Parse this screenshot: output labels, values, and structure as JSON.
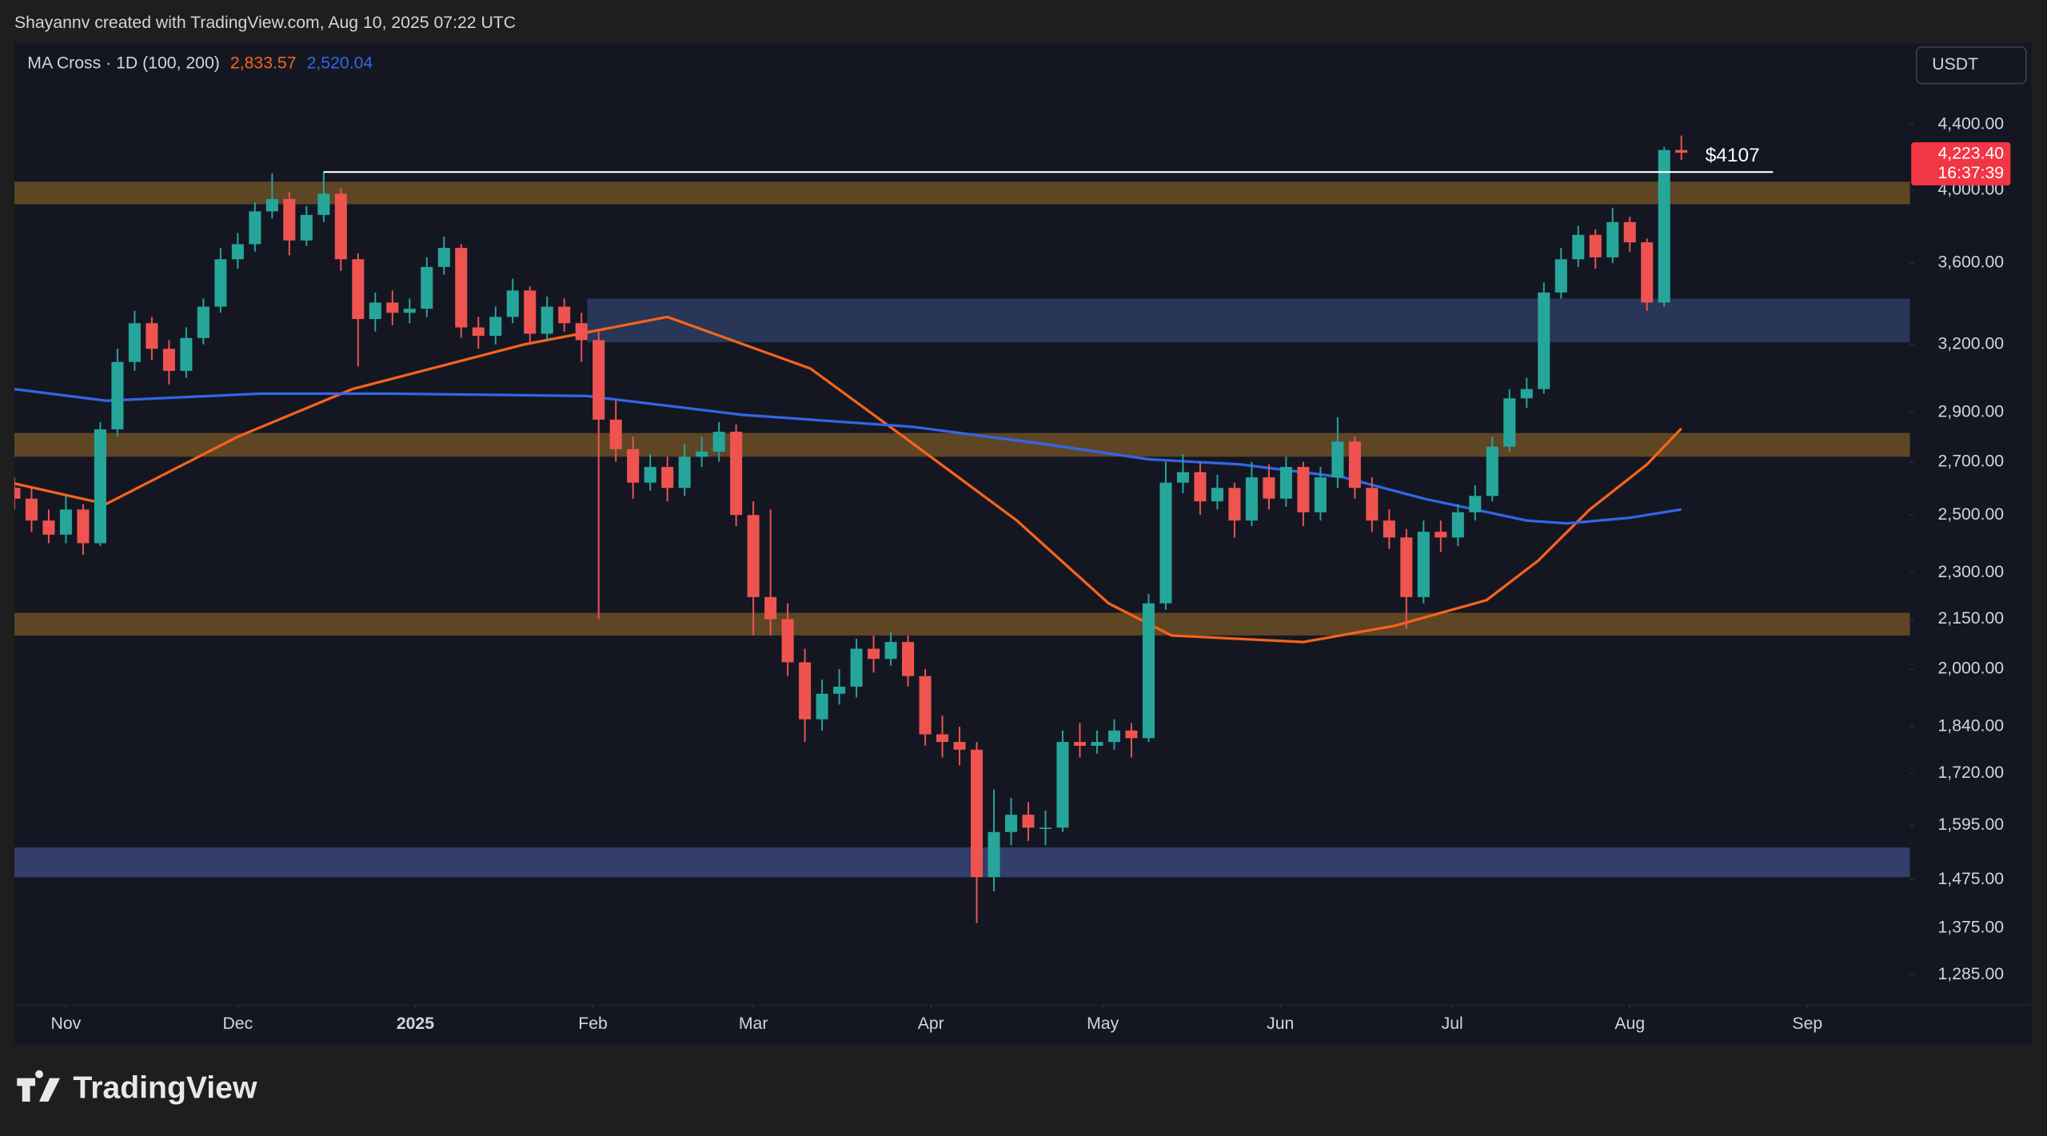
{
  "header": {
    "credit": "Shayannv created with TradingView.com, Aug 10, 2025 07:22 UTC"
  },
  "toolbar": {
    "currency": "USDT"
  },
  "footer": {
    "brand": "TradingView"
  },
  "chart_data": {
    "type": "candlestick",
    "indicator": "MA Cross · 1D (100, 200)",
    "log_scale": true,
    "up_color": "#26a69a",
    "down_color": "#ef5350",
    "x": [
      -9,
      -6,
      -3,
      0,
      3,
      6,
      9,
      12,
      15,
      18,
      21,
      24,
      27,
      30,
      33,
      36,
      39,
      42,
      45,
      48,
      51,
      54,
      57,
      60,
      63,
      66,
      69,
      72,
      75,
      78,
      81,
      84,
      87,
      90,
      93,
      96,
      99,
      102,
      105,
      108,
      111,
      114,
      117,
      120,
      123,
      126,
      129,
      132,
      135,
      138,
      141,
      144,
      147,
      150,
      153,
      156,
      159,
      162,
      165,
      168,
      171,
      174,
      177,
      180,
      183,
      186,
      189,
      192,
      195,
      198,
      201,
      204,
      207,
      210,
      213,
      216,
      219,
      222,
      225,
      228,
      231,
      234,
      237,
      240,
      243,
      246,
      249,
      252,
      255,
      258,
      261,
      264,
      267,
      270,
      273,
      276,
      279,
      282
    ],
    "values": [
      [
        2600,
        2640,
        2520,
        2560
      ],
      [
        2560,
        2600,
        2440,
        2480
      ],
      [
        2480,
        2520,
        2400,
        2430
      ],
      [
        2430,
        2570,
        2400,
        2520
      ],
      [
        2520,
        2540,
        2360,
        2400
      ],
      [
        2400,
        2860,
        2390,
        2830
      ],
      [
        2830,
        3180,
        2800,
        3120
      ],
      [
        3120,
        3360,
        3080,
        3300
      ],
      [
        3300,
        3330,
        3130,
        3180
      ],
      [
        3180,
        3220,
        3020,
        3080
      ],
      [
        3080,
        3280,
        3050,
        3230
      ],
      [
        3230,
        3420,
        3200,
        3380
      ],
      [
        3380,
        3680,
        3350,
        3620
      ],
      [
        3620,
        3760,
        3570,
        3700
      ],
      [
        3700,
        3930,
        3660,
        3880
      ],
      [
        3880,
        4100,
        3840,
        3950
      ],
      [
        3950,
        3990,
        3640,
        3720
      ],
      [
        3720,
        3910,
        3690,
        3860
      ],
      [
        3860,
        4110,
        3820,
        3980
      ],
      [
        3980,
        4010,
        3560,
        3620
      ],
      [
        3620,
        3650,
        3100,
        3320
      ],
      [
        3320,
        3450,
        3260,
        3400
      ],
      [
        3400,
        3460,
        3290,
        3350
      ],
      [
        3350,
        3420,
        3300,
        3370
      ],
      [
        3370,
        3630,
        3330,
        3580
      ],
      [
        3580,
        3740,
        3540,
        3680
      ],
      [
        3680,
        3700,
        3230,
        3280
      ],
      [
        3280,
        3330,
        3180,
        3240
      ],
      [
        3240,
        3380,
        3200,
        3330
      ],
      [
        3330,
        3520,
        3300,
        3460
      ],
      [
        3460,
        3480,
        3200,
        3250
      ],
      [
        3250,
        3430,
        3220,
        3380
      ],
      [
        3380,
        3420,
        3260,
        3300
      ],
      [
        3300,
        3350,
        3120,
        3220
      ],
      [
        3220,
        3260,
        2150,
        2870
      ],
      [
        2870,
        2950,
        2700,
        2750
      ],
      [
        2750,
        2800,
        2560,
        2620
      ],
      [
        2620,
        2730,
        2590,
        2680
      ],
      [
        2680,
        2720,
        2550,
        2600
      ],
      [
        2600,
        2770,
        2570,
        2720
      ],
      [
        2720,
        2800,
        2680,
        2740
      ],
      [
        2740,
        2860,
        2700,
        2820
      ],
      [
        2820,
        2850,
        2460,
        2500
      ],
      [
        2500,
        2550,
        2100,
        2220
      ],
      [
        2220,
        2520,
        2100,
        2150
      ],
      [
        2150,
        2200,
        1980,
        2020
      ],
      [
        2020,
        2060,
        1800,
        1860
      ],
      [
        1860,
        1970,
        1830,
        1930
      ],
      [
        1930,
        2000,
        1900,
        1950
      ],
      [
        1950,
        2090,
        1920,
        2060
      ],
      [
        2060,
        2100,
        1990,
        2030
      ],
      [
        2030,
        2110,
        2010,
        2080
      ],
      [
        2080,
        2100,
        1950,
        1980
      ],
      [
        1980,
        2000,
        1790,
        1820
      ],
      [
        1820,
        1870,
        1760,
        1800
      ],
      [
        1800,
        1840,
        1740,
        1780
      ],
      [
        1780,
        1800,
        1385,
        1480
      ],
      [
        1480,
        1680,
        1450,
        1580
      ],
      [
        1580,
        1660,
        1550,
        1620
      ],
      [
        1620,
        1650,
        1560,
        1590
      ],
      [
        1590,
        1630,
        1550,
        1590
      ],
      [
        1590,
        1830,
        1580,
        1800
      ],
      [
        1800,
        1850,
        1760,
        1790
      ],
      [
        1790,
        1830,
        1770,
        1800
      ],
      [
        1800,
        1860,
        1780,
        1830
      ],
      [
        1830,
        1850,
        1760,
        1810
      ],
      [
        1810,
        2230,
        1800,
        2200
      ],
      [
        2200,
        2700,
        2180,
        2620
      ],
      [
        2620,
        2730,
        2580,
        2660
      ],
      [
        2660,
        2700,
        2500,
        2550
      ],
      [
        2550,
        2650,
        2520,
        2600
      ],
      [
        2600,
        2620,
        2420,
        2480
      ],
      [
        2480,
        2700,
        2460,
        2640
      ],
      [
        2640,
        2690,
        2520,
        2560
      ],
      [
        2560,
        2720,
        2530,
        2680
      ],
      [
        2680,
        2700,
        2460,
        2510
      ],
      [
        2510,
        2680,
        2480,
        2640
      ],
      [
        2640,
        2880,
        2600,
        2780
      ],
      [
        2780,
        2800,
        2560,
        2600
      ],
      [
        2600,
        2640,
        2440,
        2480
      ],
      [
        2480,
        2520,
        2380,
        2420
      ],
      [
        2420,
        2450,
        2120,
        2220
      ],
      [
        2220,
        2480,
        2200,
        2440
      ],
      [
        2440,
        2480,
        2370,
        2420
      ],
      [
        2420,
        2540,
        2390,
        2510
      ],
      [
        2510,
        2610,
        2480,
        2570
      ],
      [
        2570,
        2800,
        2550,
        2760
      ],
      [
        2760,
        3000,
        2740,
        2960
      ],
      [
        2960,
        3050,
        2920,
        3000
      ],
      [
        3000,
        3500,
        2980,
        3450
      ],
      [
        3450,
        3680,
        3420,
        3620
      ],
      [
        3620,
        3800,
        3580,
        3750
      ],
      [
        3750,
        3780,
        3570,
        3630
      ],
      [
        3630,
        3900,
        3600,
        3820
      ],
      [
        3820,
        3850,
        3660,
        3710
      ],
      [
        3710,
        3730,
        3360,
        3400
      ],
      [
        3400,
        4260,
        3380,
        4240
      ],
      [
        4240,
        4330,
        4180,
        4223.4
      ]
    ],
    "xlim": [
      -9,
      321.9
    ],
    "xticks": [
      {
        "value": 0,
        "label": "Nov"
      },
      {
        "value": 30,
        "label": "Dec"
      },
      {
        "value": 61,
        "label": "2025"
      },
      {
        "value": 92,
        "label": "Feb"
      },
      {
        "value": 120,
        "label": "Mar"
      },
      {
        "value": 151,
        "label": "Apr"
      },
      {
        "value": 181,
        "label": "May"
      },
      {
        "value": 212,
        "label": "Jun"
      },
      {
        "value": 242,
        "label": "Jul"
      },
      {
        "value": 273,
        "label": "Aug"
      },
      {
        "value": 304,
        "label": "Sep"
      }
    ],
    "ylim": [
      1230,
      4950
    ],
    "yticks": [
      {
        "value": 4400,
        "label": "4,400.00"
      },
      {
        "value": 4000,
        "label": "4,000.00"
      },
      {
        "value": 3600,
        "label": "3,600.00"
      },
      {
        "value": 3200,
        "label": "3,200.00"
      },
      {
        "value": 2900,
        "label": "2,900.00"
      },
      {
        "value": 2700,
        "label": "2,700.00"
      },
      {
        "value": 2500,
        "label": "2,500.00"
      },
      {
        "value": 2300,
        "label": "2,300.00"
      },
      {
        "value": 2150,
        "label": "2,150.00"
      },
      {
        "value": 2000,
        "label": "2,000.00"
      },
      {
        "value": 1840,
        "label": "1,840.00"
      },
      {
        "value": 1720,
        "label": "1,720.00"
      },
      {
        "value": 1595,
        "label": "1,595.00"
      },
      {
        "value": 1475,
        "label": "1,475.00"
      },
      {
        "value": 1375,
        "label": "1,375.00"
      },
      {
        "value": 1285,
        "label": "1,285.00"
      }
    ],
    "overlays": [
      {
        "color": "#f7631b",
        "x": [
          -9,
          7,
          30,
          50,
          80,
          105,
          130,
          148,
          166,
          182,
          193,
          216,
          232,
          248,
          257,
          266,
          276,
          282
        ],
        "values": [
          2617,
          2540,
          2800,
          3000,
          3200,
          3330,
          3090,
          2770,
          2480,
          2200,
          2100,
          2080,
          2130,
          2210,
          2340,
          2520,
          2690,
          2833.57
        ],
        "legend_value": {
          "value": 2833.57,
          "label": "2,833.57"
        }
      },
      {
        "color": "#3366e6",
        "x": [
          -9,
          7,
          34,
          57,
          91,
          118,
          148,
          171,
          189,
          205,
          223,
          237,
          255,
          262,
          273,
          282
        ],
        "values": [
          3000,
          2950,
          2980,
          2980,
          2970,
          2890,
          2840,
          2770,
          2710,
          2690,
          2640,
          2560,
          2480,
          2470,
          2490,
          2520.04
        ],
        "legend_value": {
          "value": 2520.04,
          "label": "2,520.04"
        }
      }
    ],
    "zones": [
      {
        "low": 3920,
        "high": 4050,
        "color": "#6b4f26"
      },
      {
        "low": 3210,
        "high": 3420,
        "from": 91,
        "color": "#2b3c60"
      },
      {
        "low": 2720,
        "high": 2815,
        "color": "#6b4f26"
      },
      {
        "low": 2100,
        "high": 2170,
        "color": "#6b4f26"
      },
      {
        "low": 1480,
        "high": 1545,
        "color": "#3a4577"
      }
    ],
    "level": {
      "value": 4107,
      "label": "$4107",
      "from": 45,
      "to": 298,
      "color": "#ffffff"
    },
    "last_price": {
      "value": 4223.4,
      "label": "4,223.40",
      "countdown": "16:37:39",
      "color": "#f23645"
    }
  }
}
